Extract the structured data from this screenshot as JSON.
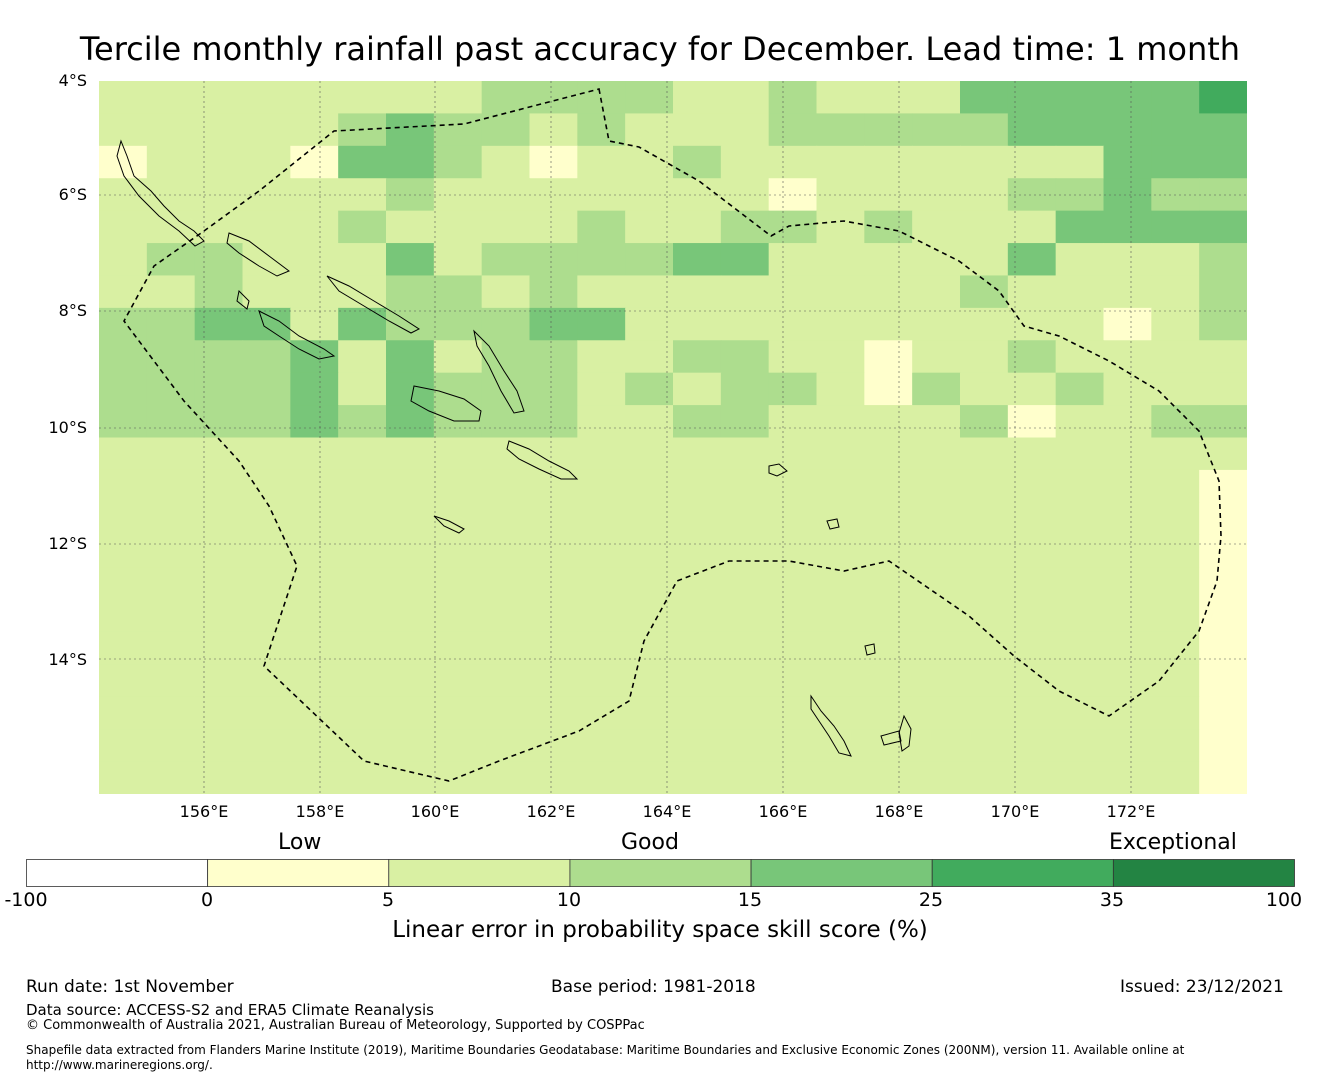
{
  "title": "Tercile monthly rainfall past accuracy for December. Lead time: 1 month",
  "map": {
    "lat_labels": [
      "4°S",
      "6°S",
      "8°S",
      "10°S",
      "12°S",
      "14°S"
    ],
    "lon_labels": [
      "156°E",
      "158°E",
      "160°E",
      "162°E",
      "164°E",
      "166°E",
      "168°E",
      "170°E",
      "172°E"
    ],
    "colors": {
      "0": "#ffffff",
      "1": "#ffffcc",
      "2": "#d9f0a3",
      "3": "#addd8e",
      "4": "#78c679",
      "5": "#41ab5d",
      "6": "#238443"
    },
    "grid_columns": 24,
    "grid_rows": 22,
    "grid": [
      "222222223333223222444445",
      "222223433232223333344444",
      "122214432122322222222444",
      "222222322222221222233433",
      "222223222232233232224444",
      "233222423333442222242223",
      "223222332322222222322223",
      "334424333442222222222123",
      "333342423322332212232222",
      "333342433323233213223222",
      "333343433322332222312233",
      "222222222222222222222222",
      "222222222222222222222221",
      "222222222222222222222221",
      "222222222222222222222221",
      "222222222222222222222221",
      "222222222222222222222221",
      "222222222222222222222221",
      "222222222222222222222221",
      "222222222222222222222221",
      "222222222222222222222221",
      "222222222222222222222221"
    ]
  },
  "legend": {
    "categories": [
      "Low",
      "Good",
      "Exceptional"
    ],
    "colors": [
      "#ffffff",
      "#ffffcc",
      "#d9f0a3",
      "#addd8e",
      "#78c679",
      "#41ab5d",
      "#238443"
    ],
    "ticks": [
      "-100",
      "0",
      "5",
      "10",
      "15",
      "25",
      "35",
      "100"
    ],
    "axis_label": "Linear error in probability space skill score (%)"
  },
  "footer": {
    "run_date": "Run date: 1st November",
    "base_period": "Base period: 1981-2018",
    "issued": "Issued: 23/12/2021",
    "data_source": "Data source: ACCESS-S2 and ERA5 Climate Reanalysis",
    "copyright": "© Commonwealth of Australia 2021, Australian Bureau of Meteorology, Supported by COSPPac",
    "shapefile_line1": "Shapefile data extracted from Flanders Marine Institute (2019), Maritime Boundaries Geodatabase: Maritime Boundaries and Exclusive Economic Zones (200NM), version 11. Available online at",
    "shapefile_line2": "http://www.marineregions.org/."
  }
}
